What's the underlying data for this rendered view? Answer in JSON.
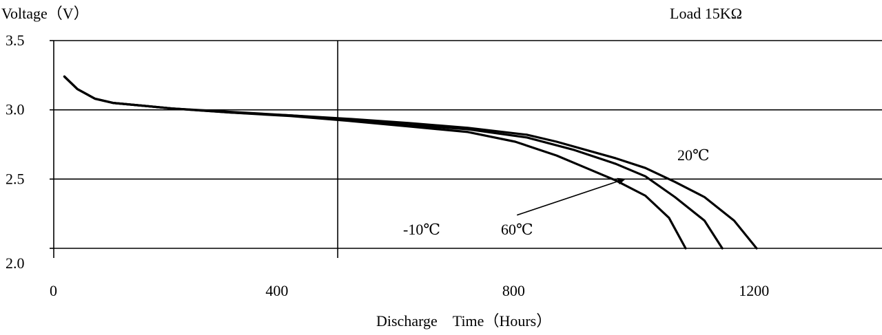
{
  "chart_data": {
    "type": "line",
    "title": "",
    "ylabel": "Voltage（V）",
    "xlabel": "Discharge　Time（Hours）",
    "annotation": "Load 15KΩ",
    "xlim": [
      0,
      1400
    ],
    "ylim": [
      2.0,
      3.5
    ],
    "x_ticks": [
      0,
      400,
      800,
      1200
    ],
    "x_tick_labels": [
      "0",
      "400",
      "800",
      "1200"
    ],
    "y_ticks": [
      2.0,
      2.5,
      3.0,
      3.5
    ],
    "y_tick_labels": [
      "2.0",
      "2.5",
      "3.0",
      "3.5"
    ],
    "grid": "horizontal lines at 2.0, 2.5, 3.0; vertical line at 480",
    "legend": "none (curves labeled directly)",
    "series": [
      {
        "name": "-10℃",
        "x": [
          18,
          40,
          70,
          100,
          150,
          200,
          300,
          400,
          500,
          600,
          700,
          780,
          850,
          900,
          950,
          1000,
          1040,
          1068
        ],
        "y": [
          3.24,
          3.15,
          3.08,
          3.05,
          3.03,
          3.01,
          2.98,
          2.955,
          2.92,
          2.88,
          2.84,
          2.77,
          2.67,
          2.58,
          2.49,
          2.38,
          2.22,
          2.0
        ]
      },
      {
        "name": "60℃",
        "x": [
          18,
          40,
          70,
          100,
          150,
          200,
          300,
          400,
          500,
          600,
          700,
          800,
          880,
          950,
          1000,
          1050,
          1100,
          1130
        ],
        "y": [
          3.24,
          3.15,
          3.08,
          3.05,
          3.03,
          3.01,
          2.98,
          2.96,
          2.93,
          2.89,
          2.86,
          2.8,
          2.71,
          2.61,
          2.52,
          2.37,
          2.2,
          2.0
        ]
      },
      {
        "name": "20℃",
        "x": [
          18,
          40,
          70,
          100,
          150,
          200,
          300,
          400,
          500,
          600,
          700,
          800,
          850,
          900,
          950,
          1000,
          1050,
          1100,
          1150,
          1188
        ],
        "y": [
          3.24,
          3.15,
          3.08,
          3.05,
          3.03,
          3.01,
          2.985,
          2.96,
          2.935,
          2.905,
          2.87,
          2.82,
          2.77,
          2.71,
          2.65,
          2.58,
          2.48,
          2.37,
          2.2,
          2.0
        ]
      }
    ],
    "curve_labels": [
      {
        "text": "20℃",
        "series": "20℃"
      },
      {
        "text": "-10℃",
        "series": "-10℃"
      },
      {
        "text": "60℃",
        "series": "60℃"
      }
    ],
    "arrow": {
      "from": [
        783,
        2.24
      ],
      "to": [
        965,
        2.5
      ],
      "label": "60℃"
    }
  }
}
